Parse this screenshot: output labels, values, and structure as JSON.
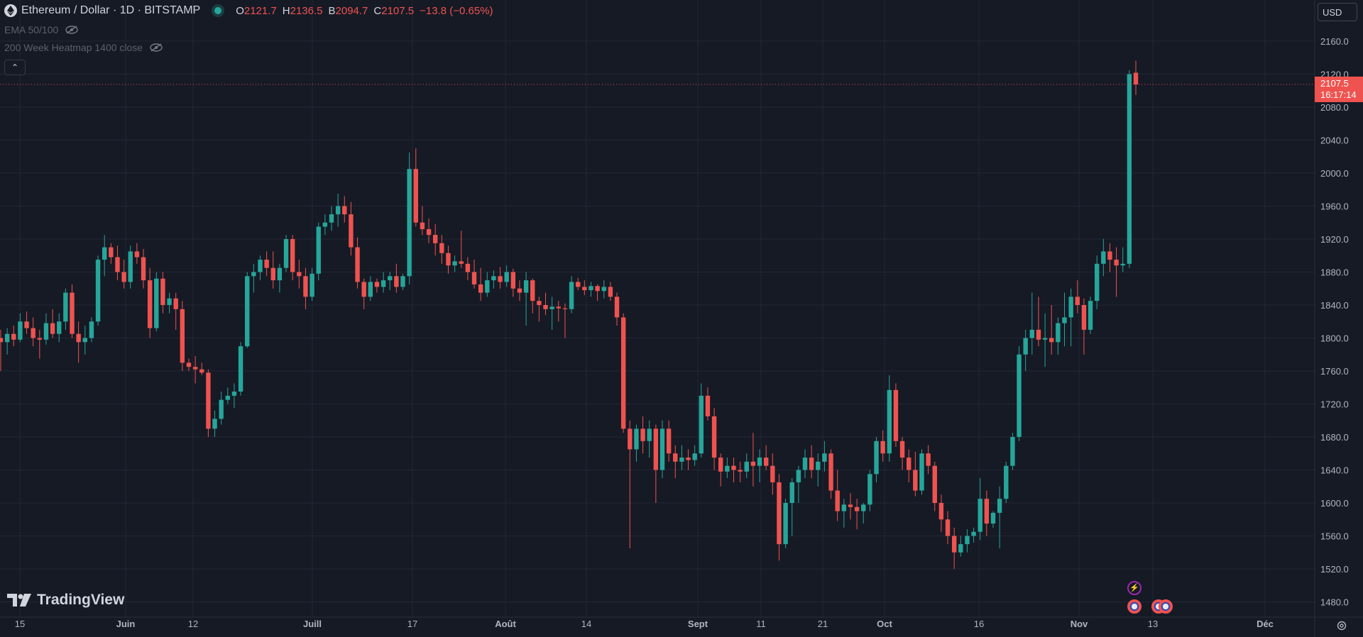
{
  "header": {
    "symbol_title": "Ethereum / Dollar · 1D · BITSTAMP",
    "ohlc": [
      {
        "key": "O",
        "value": "2121.7"
      },
      {
        "key": "H",
        "value": "2136.5"
      },
      {
        "key": "B",
        "value": "2094.7"
      },
      {
        "key": "C",
        "value": "2107.5"
      }
    ],
    "change": "−13.8 (−0.65%)"
  },
  "indicators": [
    {
      "label": "EMA 50/100"
    },
    {
      "label": "200 Week Heatmap 1400 close"
    }
  ],
  "currency_button": "USD",
  "last_price_tag": {
    "price": "2107.5",
    "countdown": "16:17:14"
  },
  "branding": "TradingView",
  "colors": {
    "background": "#161a25",
    "up": "#26a69a",
    "down": "#ef5350",
    "grid": "#232735",
    "axis_text": "#b2b5be"
  },
  "icons": [
    "ethereum-icon",
    "eye-off-icon",
    "chevron-up-icon",
    "settings-icon",
    "lightning-event-icon",
    "us-flag-event-icon"
  ],
  "chart_data": {
    "type": "candlestick",
    "title": "Ethereum / Dollar · 1D · BITSTAMP",
    "ylim": [
      1460,
      2180
    ],
    "y_ticks": [
      "2160.0",
      "2120.0",
      "2080.0",
      "2040.0",
      "2000.0",
      "1960.0",
      "1920.0",
      "1880.0",
      "1840.0",
      "1800.0",
      "1760.0",
      "1720.0",
      "1680.0",
      "1640.0",
      "1600.0",
      "1560.0",
      "1520.0",
      "1480.0"
    ],
    "x_ticks": [
      "15",
      "Juin",
      "12",
      "Juill",
      "17",
      "Août",
      "14",
      "Sept",
      "11",
      "21",
      "Oct",
      "16",
      "Nov",
      "13",
      "Déc"
    ],
    "grid": true,
    "last_price": 2107.5,
    "series": [
      {
        "name": "ETH/USD",
        "values": [
          [
            1800,
            1810,
            1760,
            1795
          ],
          [
            1795,
            1812,
            1780,
            1805
          ],
          [
            1805,
            1815,
            1790,
            1798
          ],
          [
            1798,
            1830,
            1795,
            1820
          ],
          [
            1820,
            1832,
            1805,
            1812
          ],
          [
            1812,
            1825,
            1790,
            1800
          ],
          [
            1800,
            1810,
            1775,
            1798
          ],
          [
            1798,
            1830,
            1792,
            1818
          ],
          [
            1818,
            1835,
            1800,
            1805
          ],
          [
            1805,
            1830,
            1795,
            1820
          ],
          [
            1820,
            1860,
            1810,
            1855
          ],
          [
            1855,
            1865,
            1800,
            1805
          ],
          [
            1805,
            1820,
            1770,
            1795
          ],
          [
            1795,
            1815,
            1780,
            1800
          ],
          [
            1800,
            1825,
            1795,
            1820
          ],
          [
            1820,
            1900,
            1815,
            1895
          ],
          [
            1895,
            1925,
            1875,
            1910
          ],
          [
            1910,
            1915,
            1890,
            1898
          ],
          [
            1898,
            1912,
            1870,
            1880
          ],
          [
            1880,
            1895,
            1860,
            1868
          ],
          [
            1868,
            1912,
            1860,
            1905
          ],
          [
            1905,
            1915,
            1890,
            1898
          ],
          [
            1898,
            1908,
            1860,
            1870
          ],
          [
            1870,
            1885,
            1800,
            1812
          ],
          [
            1812,
            1880,
            1808,
            1872
          ],
          [
            1872,
            1880,
            1830,
            1840
          ],
          [
            1840,
            1855,
            1830,
            1848
          ],
          [
            1848,
            1855,
            1810,
            1835
          ],
          [
            1835,
            1845,
            1760,
            1770
          ],
          [
            1770,
            1775,
            1760,
            1765
          ],
          [
            1765,
            1778,
            1745,
            1762
          ],
          [
            1762,
            1770,
            1755,
            1758
          ],
          [
            1758,
            1762,
            1680,
            1690
          ],
          [
            1690,
            1712,
            1680,
            1702
          ],
          [
            1702,
            1735,
            1695,
            1725
          ],
          [
            1725,
            1740,
            1720,
            1730
          ],
          [
            1730,
            1745,
            1715,
            1735
          ],
          [
            1735,
            1795,
            1730,
            1790
          ],
          [
            1790,
            1880,
            1788,
            1875
          ],
          [
            1875,
            1890,
            1855,
            1880
          ],
          [
            1880,
            1900,
            1870,
            1895
          ],
          [
            1895,
            1905,
            1875,
            1885
          ],
          [
            1885,
            1905,
            1860,
            1870
          ],
          [
            1870,
            1890,
            1855,
            1885
          ],
          [
            1885,
            1925,
            1880,
            1920
          ],
          [
            1920,
            1925,
            1870,
            1880
          ],
          [
            1880,
            1895,
            1860,
            1875
          ],
          [
            1875,
            1885,
            1835,
            1850
          ],
          [
            1850,
            1885,
            1845,
            1878
          ],
          [
            1878,
            1940,
            1870,
            1935
          ],
          [
            1935,
            1950,
            1925,
            1940
          ],
          [
            1940,
            1960,
            1930,
            1950
          ],
          [
            1950,
            1975,
            1935,
            1960
          ],
          [
            1960,
            1972,
            1940,
            1950
          ],
          [
            1950,
            1965,
            1900,
            1910
          ],
          [
            1910,
            1922,
            1860,
            1868
          ],
          [
            1868,
            1872,
            1835,
            1850
          ],
          [
            1850,
            1875,
            1845,
            1868
          ],
          [
            1868,
            1872,
            1855,
            1862
          ],
          [
            1862,
            1880,
            1855,
            1870
          ],
          [
            1870,
            1880,
            1858,
            1875
          ],
          [
            1875,
            1890,
            1855,
            1862
          ],
          [
            1862,
            1878,
            1858,
            1875
          ],
          [
            1875,
            2025,
            1865,
            2005
          ],
          [
            2005,
            2030,
            1935,
            1940
          ],
          [
            1940,
            1960,
            1925,
            1932
          ],
          [
            1932,
            1945,
            1915,
            1925
          ],
          [
            1925,
            1938,
            1900,
            1915
          ],
          [
            1915,
            1925,
            1890,
            1903
          ],
          [
            1903,
            1912,
            1878,
            1888
          ],
          [
            1888,
            1900,
            1880,
            1893
          ],
          [
            1893,
            1930,
            1885,
            1890
          ],
          [
            1890,
            1898,
            1870,
            1880
          ],
          [
            1880,
            1895,
            1860,
            1865
          ],
          [
            1865,
            1885,
            1845,
            1855
          ],
          [
            1855,
            1880,
            1850,
            1870
          ],
          [
            1870,
            1882,
            1860,
            1875
          ],
          [
            1875,
            1886,
            1860,
            1868
          ],
          [
            1868,
            1888,
            1862,
            1880
          ],
          [
            1880,
            1884,
            1850,
            1860
          ],
          [
            1860,
            1870,
            1845,
            1855
          ],
          [
            1855,
            1880,
            1815,
            1870
          ],
          [
            1870,
            1872,
            1830,
            1845
          ],
          [
            1845,
            1850,
            1820,
            1840
          ],
          [
            1840,
            1855,
            1828,
            1835
          ],
          [
            1835,
            1850,
            1810,
            1838
          ],
          [
            1838,
            1845,
            1820,
            1836
          ],
          [
            1836,
            1842,
            1800,
            1835
          ],
          [
            1835,
            1875,
            1830,
            1868
          ],
          [
            1868,
            1873,
            1858,
            1862
          ],
          [
            1862,
            1870,
            1852,
            1858
          ],
          [
            1858,
            1868,
            1850,
            1863
          ],
          [
            1863,
            1865,
            1845,
            1857
          ],
          [
            1857,
            1870,
            1848,
            1862
          ],
          [
            1862,
            1868,
            1845,
            1850
          ],
          [
            1850,
            1855,
            1815,
            1825
          ],
          [
            1825,
            1830,
            1685,
            1690
          ],
          [
            1690,
            1700,
            1545,
            1665
          ],
          [
            1665,
            1695,
            1650,
            1690
          ],
          [
            1690,
            1705,
            1660,
            1675
          ],
          [
            1675,
            1700,
            1655,
            1690
          ],
          [
            1690,
            1695,
            1600,
            1640
          ],
          [
            1640,
            1700,
            1630,
            1690
          ],
          [
            1690,
            1700,
            1650,
            1660
          ],
          [
            1660,
            1670,
            1630,
            1650
          ],
          [
            1650,
            1670,
            1640,
            1655
          ],
          [
            1655,
            1665,
            1640,
            1652
          ],
          [
            1652,
            1670,
            1645,
            1660
          ],
          [
            1660,
            1745,
            1655,
            1730
          ],
          [
            1730,
            1740,
            1700,
            1705
          ],
          [
            1705,
            1715,
            1640,
            1655
          ],
          [
            1655,
            1660,
            1620,
            1638
          ],
          [
            1638,
            1655,
            1630,
            1645
          ],
          [
            1645,
            1655,
            1625,
            1640
          ],
          [
            1640,
            1650,
            1625,
            1638
          ],
          [
            1638,
            1660,
            1630,
            1650
          ],
          [
            1650,
            1685,
            1620,
            1645
          ],
          [
            1645,
            1665,
            1625,
            1655
          ],
          [
            1655,
            1670,
            1640,
            1645
          ],
          [
            1645,
            1660,
            1610,
            1625
          ],
          [
            1625,
            1635,
            1530,
            1550
          ],
          [
            1550,
            1605,
            1545,
            1600
          ],
          [
            1600,
            1630,
            1560,
            1625
          ],
          [
            1625,
            1645,
            1600,
            1640
          ],
          [
            1640,
            1665,
            1630,
            1655
          ],
          [
            1655,
            1670,
            1630,
            1640
          ],
          [
            1640,
            1660,
            1620,
            1650
          ],
          [
            1650,
            1675,
            1638,
            1660
          ],
          [
            1660,
            1665,
            1605,
            1615
          ],
          [
            1615,
            1640,
            1578,
            1590
          ],
          [
            1590,
            1605,
            1570,
            1598
          ],
          [
            1598,
            1612,
            1580,
            1595
          ],
          [
            1595,
            1605,
            1568,
            1590
          ],
          [
            1590,
            1600,
            1575,
            1598
          ],
          [
            1598,
            1640,
            1590,
            1635
          ],
          [
            1635,
            1680,
            1625,
            1675
          ],
          [
            1675,
            1688,
            1650,
            1660
          ],
          [
            1660,
            1755,
            1650,
            1737
          ],
          [
            1737,
            1745,
            1668,
            1675
          ],
          [
            1675,
            1680,
            1640,
            1655
          ],
          [
            1655,
            1665,
            1625,
            1640
          ],
          [
            1640,
            1662,
            1608,
            1615
          ],
          [
            1615,
            1665,
            1610,
            1660
          ],
          [
            1660,
            1670,
            1635,
            1645
          ],
          [
            1645,
            1650,
            1590,
            1600
          ],
          [
            1600,
            1610,
            1565,
            1580
          ],
          [
            1580,
            1590,
            1550,
            1560
          ],
          [
            1560,
            1570,
            1520,
            1540
          ],
          [
            1540,
            1560,
            1535,
            1550
          ],
          [
            1550,
            1568,
            1540,
            1560
          ],
          [
            1560,
            1570,
            1552,
            1565
          ],
          [
            1565,
            1630,
            1555,
            1605
          ],
          [
            1605,
            1615,
            1560,
            1575
          ],
          [
            1575,
            1590,
            1570,
            1588
          ],
          [
            1588,
            1620,
            1545,
            1605
          ],
          [
            1605,
            1650,
            1600,
            1645
          ],
          [
            1645,
            1685,
            1640,
            1680
          ],
          [
            1680,
            1790,
            1675,
            1780
          ],
          [
            1780,
            1810,
            1760,
            1800
          ],
          [
            1800,
            1855,
            1780,
            1810
          ],
          [
            1810,
            1850,
            1790,
            1798
          ],
          [
            1798,
            1830,
            1765,
            1800
          ],
          [
            1800,
            1840,
            1780,
            1795
          ],
          [
            1795,
            1825,
            1780,
            1818
          ],
          [
            1818,
            1855,
            1790,
            1825
          ],
          [
            1825,
            1860,
            1790,
            1850
          ],
          [
            1850,
            1870,
            1830,
            1840
          ],
          [
            1840,
            1848,
            1780,
            1810
          ],
          [
            1810,
            1850,
            1805,
            1845
          ],
          [
            1845,
            1900,
            1835,
            1890
          ],
          [
            1890,
            1920,
            1875,
            1905
          ],
          [
            1905,
            1915,
            1880,
            1895
          ],
          [
            1895,
            1910,
            1850,
            1888
          ],
          [
            1888,
            1910,
            1880,
            1890
          ],
          [
            1890,
            2125,
            1885,
            2120
          ],
          [
            2121.7,
            2136.5,
            2094.7,
            2107.5
          ]
        ]
      }
    ]
  }
}
